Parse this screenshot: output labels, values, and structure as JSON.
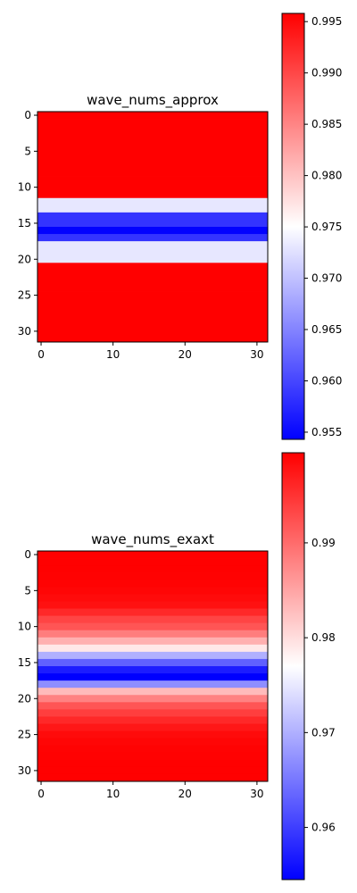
{
  "chart_data": [
    {
      "type": "heatmap",
      "title": "wave_nums_approx",
      "xlabel": "",
      "ylabel": "",
      "colormap": "bwr",
      "grid": false,
      "rows": 32,
      "cols": 32,
      "row_values": [
        0.9958,
        0.9958,
        0.9958,
        0.9958,
        0.9958,
        0.9958,
        0.9958,
        0.9958,
        0.9958,
        0.9958,
        0.9958,
        0.9958,
        0.9731,
        0.9731,
        0.9585,
        0.9585,
        0.9545,
        0.9585,
        0.9731,
        0.9731,
        0.9731,
        0.9958,
        0.9958,
        0.9958,
        0.9958,
        0.9958,
        0.9958,
        0.9958,
        0.9958,
        0.9958,
        0.9958,
        0.9958
      ],
      "x_ticks": [
        0,
        10,
        20,
        30
      ],
      "y_ticks": [
        0,
        5,
        10,
        15,
        20,
        25,
        30
      ],
      "colorbar": {
        "min": 0.9543,
        "max": 0.9958,
        "ticks": [
          0.955,
          0.96,
          0.965,
          0.97,
          0.975,
          0.98,
          0.985,
          0.99,
          0.995
        ],
        "tick_labels": [
          "0.955",
          "0.960",
          "0.965",
          "0.970",
          "0.975",
          "0.980",
          "0.985",
          "0.990",
          "0.995"
        ]
      }
    },
    {
      "type": "heatmap",
      "title": "wave_nums_exaxt",
      "xlabel": "",
      "ylabel": "",
      "colormap": "bwr",
      "grid": false,
      "rows": 32,
      "cols": 32,
      "row_values": [
        0.9994,
        0.9994,
        0.9994,
        0.9993,
        0.9992,
        0.999,
        0.9985,
        0.998,
        0.996,
        0.9935,
        0.992,
        0.9885,
        0.984,
        0.979,
        0.97,
        0.963,
        0.957,
        0.9545,
        0.967,
        0.983,
        0.988,
        0.992,
        0.994,
        0.996,
        0.9975,
        0.9985,
        0.999,
        0.9992,
        0.9993,
        0.9994,
        0.9994,
        0.9994
      ],
      "x_ticks": [
        0,
        10,
        20,
        30
      ],
      "y_ticks": [
        0,
        5,
        10,
        15,
        20,
        25,
        30
      ],
      "colorbar": {
        "min": 0.9545,
        "max": 0.9995,
        "ticks": [
          0.96,
          0.97,
          0.98,
          0.99
        ],
        "tick_labels": [
          "0.96",
          "0.97",
          "0.98",
          "0.99"
        ]
      }
    }
  ]
}
